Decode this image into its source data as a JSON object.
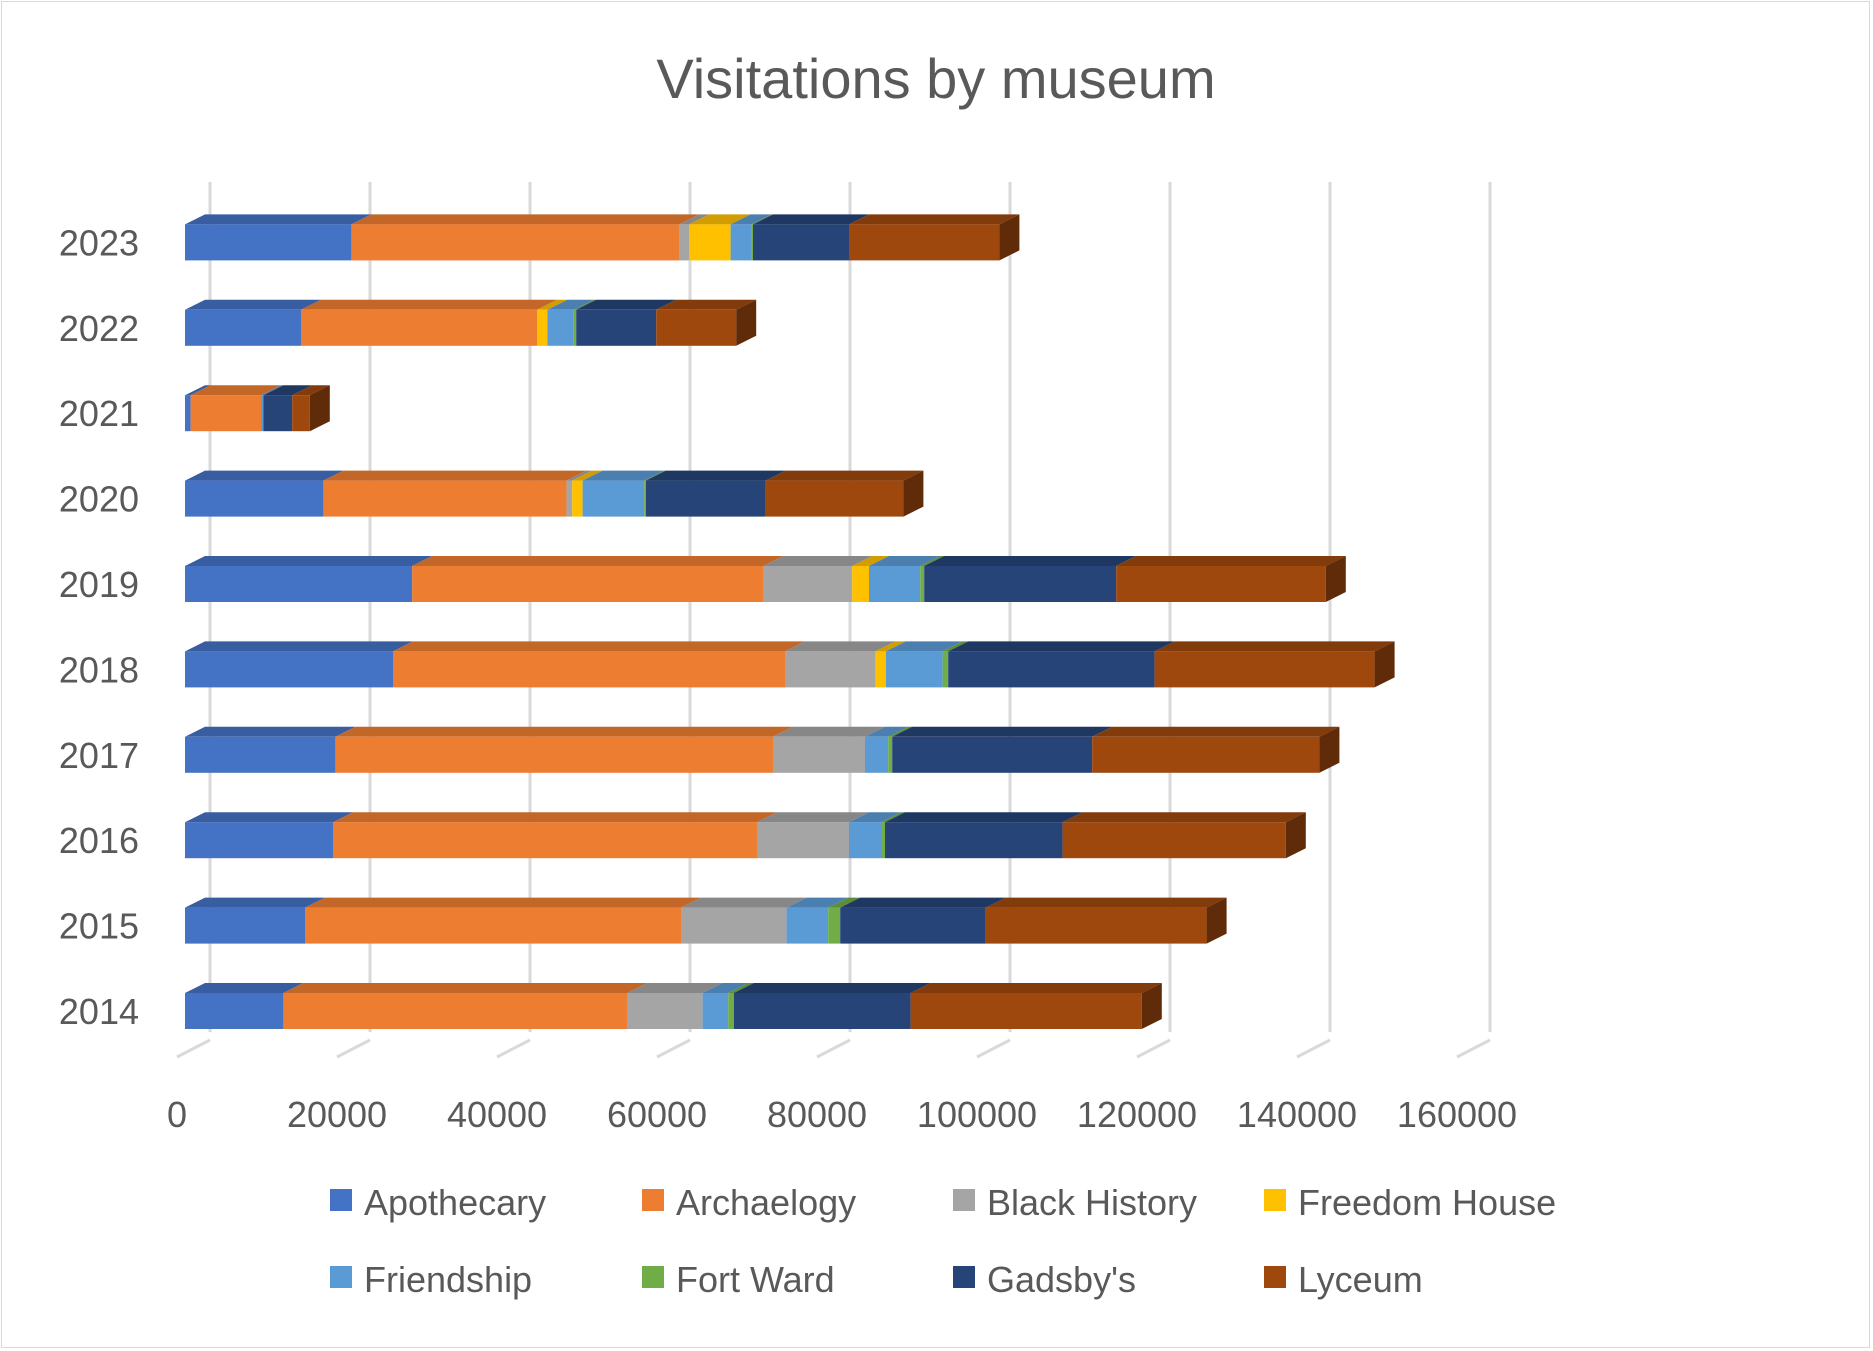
{
  "chart_data": {
    "type": "bar",
    "orientation": "horizontal",
    "stacked": true,
    "style": "3d",
    "title": "Visitations by museum",
    "xlabel": "",
    "ylabel": "",
    "xlim": [
      0,
      160000
    ],
    "x_ticks": [
      "0",
      "20000",
      "40000",
      "60000",
      "80000",
      "100000",
      "120000",
      "140000",
      "160000"
    ],
    "grid": "vertical",
    "legend_position": "bottom",
    "categories": [
      "2014",
      "2015",
      "2016",
      "2017",
      "2018",
      "2019",
      "2020",
      "2021",
      "2022",
      "2023"
    ],
    "series": [
      {
        "name": "Apothecary",
        "color": "#4472C4",
        "values": [
          12300,
          15000,
          18500,
          18800,
          26000,
          28400,
          17300,
          700,
          14500,
          20800
        ]
      },
      {
        "name": "Archaelogy",
        "color": "#ED7D31",
        "values": [
          43000,
          47000,
          53000,
          54700,
          49000,
          43900,
          30400,
          8800,
          29500,
          41000
        ]
      },
      {
        "name": "Black History",
        "color": "#A5A5A5",
        "values": [
          9400,
          13200,
          11500,
          11500,
          11300,
          11100,
          700,
          0,
          0,
          1200
        ]
      },
      {
        "name": "Freedom House",
        "color": "#FFC000",
        "values": [
          0,
          0,
          0,
          0,
          1300,
          2100,
          1300,
          0,
          1300,
          5200
        ]
      },
      {
        "name": "Friendship",
        "color": "#5B9BD5",
        "values": [
          3200,
          5200,
          4000,
          2900,
          7100,
          6400,
          7700,
          300,
          3300,
          2600
        ]
      },
      {
        "name": "Fort Ward",
        "color": "#70AD47",
        "values": [
          700,
          1500,
          500,
          500,
          700,
          500,
          200,
          0,
          300,
          200
        ]
      },
      {
        "name": "Gadsby's",
        "color": "#264478",
        "values": [
          22100,
          18200,
          22200,
          25000,
          25800,
          24000,
          15000,
          3600,
          10000,
          12000
        ]
      },
      {
        "name": "Lyceum",
        "color": "#9E480E",
        "values": [
          28900,
          27600,
          27900,
          28400,
          27500,
          26200,
          17200,
          2200,
          10000,
          18800
        ]
      }
    ]
  }
}
